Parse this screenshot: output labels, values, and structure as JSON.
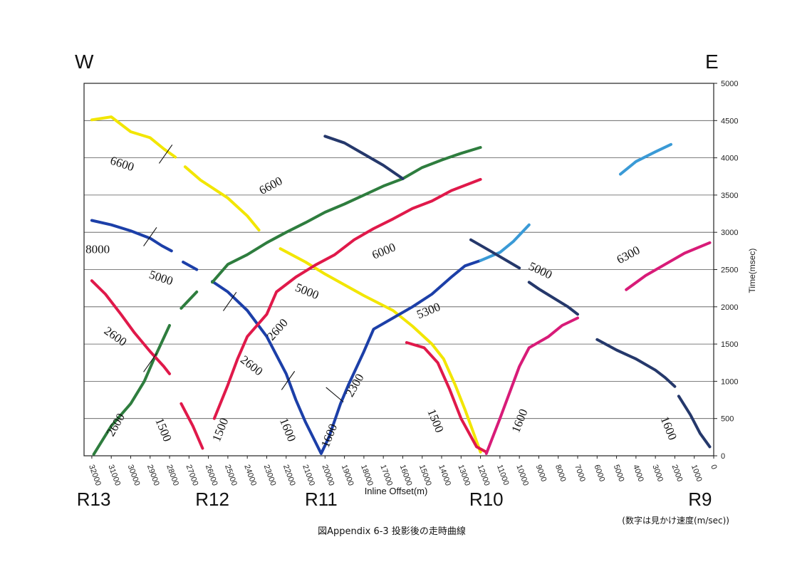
{
  "chart_data": {
    "type": "scatter",
    "title": "図Appendix 6-3  投影後の走時曲線",
    "note": "(数字は見かけ速度(m/sec))",
    "xlabel": "Inline Offset(m)",
    "ylabel": "Time(msec)",
    "xlim": [
      32400,
      0
    ],
    "ylim": [
      0,
      5000
    ],
    "x_ticks": [
      32000,
      31000,
      30000,
      29000,
      28000,
      27000,
      26000,
      25000,
      24000,
      23000,
      22000,
      21000,
      20000,
      19000,
      18000,
      17000,
      16000,
      15000,
      14000,
      13000,
      12000,
      11000,
      10000,
      9000,
      8000,
      7000,
      6000,
      5000,
      4000,
      3000,
      2000,
      1000,
      0
    ],
    "y_ticks": [
      0,
      500,
      1000,
      1500,
      2000,
      2500,
      3000,
      3500,
      4000,
      4500,
      5000
    ],
    "grid": "horizontal",
    "direction_labels": {
      "west": "W",
      "east": "E"
    },
    "stations": [
      {
        "name": "R13",
        "x": 31900
      },
      {
        "name": "R12",
        "x": 25800
      },
      {
        "name": "R11",
        "x": 20200
      },
      {
        "name": "R10",
        "x": 11700
      },
      {
        "name": "R9",
        "x": 700
      }
    ],
    "series": [
      {
        "color": "#f2e600",
        "segments": [
          [
            [
              32000,
              4510
            ],
            [
              31000,
              4550
            ],
            [
              30000,
              4350
            ],
            [
              29000,
              4270
            ],
            [
              28300,
              4120
            ],
            [
              27700,
              4010
            ]
          ],
          [
            [
              27200,
              3880
            ],
            [
              26400,
              3700
            ],
            [
              25000,
              3460
            ],
            [
              24000,
              3220
            ],
            [
              23400,
              3030
            ]
          ],
          [
            [
              22300,
              2780
            ],
            [
              21000,
              2600
            ],
            [
              20000,
              2440
            ],
            [
              18000,
              2150
            ],
            [
              16500,
              1950
            ],
            [
              15500,
              1740
            ],
            [
              14500,
              1500
            ],
            [
              13900,
              1300
            ],
            [
              13300,
              950
            ],
            [
              12800,
              620
            ],
            [
              12000,
              50
            ]
          ]
        ]
      },
      {
        "color": "#1c3fa8",
        "segments": [
          [
            [
              32000,
              3160
            ],
            [
              31000,
              3100
            ],
            [
              30000,
              3020
            ],
            [
              29000,
              2920
            ],
            [
              28400,
              2820
            ],
            [
              27900,
              2750
            ]
          ],
          [
            [
              27300,
              2600
            ],
            [
              26600,
              2500
            ]
          ],
          [
            [
              25800,
              2340
            ],
            [
              25000,
              2200
            ],
            [
              24000,
              1950
            ],
            [
              23000,
              1600
            ],
            [
              22000,
              1100
            ],
            [
              21500,
              750
            ],
            [
              21000,
              450
            ],
            [
              20200,
              30
            ],
            [
              19800,
              250
            ],
            [
              19200,
              700
            ],
            [
              18800,
              950
            ],
            [
              18000,
              1400
            ],
            [
              17500,
              1700
            ],
            [
              16500,
              1850
            ],
            [
              15500,
              2000
            ],
            [
              14500,
              2170
            ],
            [
              13500,
              2400
            ],
            [
              12800,
              2550
            ],
            [
              12000,
              2620
            ]
          ]
        ]
      },
      {
        "color": "#3a9ad6",
        "segments": [
          [
            [
              12000,
              2620
            ],
            [
              11000,
              2730
            ],
            [
              10300,
              2880
            ],
            [
              9500,
              3100
            ]
          ]
        ]
      },
      {
        "color": "#2e7d3e",
        "segments": [
          [
            [
              31900,
              20
            ],
            [
              31000,
              400
            ],
            [
              30000,
              700
            ],
            [
              29300,
              1000
            ],
            [
              28800,
              1300
            ],
            [
              28000,
              1750
            ]
          ],
          [
            [
              27400,
              1980
            ],
            [
              26600,
              2200
            ]
          ],
          [
            [
              25800,
              2330
            ],
            [
              25000,
              2570
            ],
            [
              24000,
              2700
            ],
            [
              23000,
              2860
            ],
            [
              22000,
              3000
            ],
            [
              21000,
              3130
            ],
            [
              20000,
              3270
            ],
            [
              19000,
              3380
            ],
            [
              18000,
              3500
            ],
            [
              17000,
              3620
            ],
            [
              16000,
              3720
            ],
            [
              15000,
              3870
            ],
            [
              14000,
              3970
            ],
            [
              13000,
              4060
            ],
            [
              12000,
              4140
            ]
          ]
        ]
      },
      {
        "color": "#e0194a",
        "segments": [
          [
            [
              32000,
              2350
            ],
            [
              31300,
              2170
            ],
            [
              30500,
              1900
            ],
            [
              29800,
              1650
            ],
            [
              29000,
              1400
            ],
            [
              28300,
              1200
            ],
            [
              28000,
              1100
            ]
          ],
          [
            [
              27400,
              700
            ],
            [
              26800,
              400
            ],
            [
              26300,
              100
            ]
          ],
          [
            [
              25700,
              500
            ],
            [
              25000,
              950
            ],
            [
              24500,
              1300
            ],
            [
              24000,
              1600
            ],
            [
              23000,
              1900
            ],
            [
              22500,
              2200
            ],
            [
              21500,
              2400
            ],
            [
              20500,
              2560
            ],
            [
              19500,
              2700
            ],
            [
              18500,
              2900
            ],
            [
              17500,
              3050
            ],
            [
              16500,
              3180
            ],
            [
              15500,
              3320
            ],
            [
              14500,
              3420
            ],
            [
              13500,
              3560
            ],
            [
              12000,
              3710
            ]
          ],
          [
            [
              15800,
              1520
            ],
            [
              14900,
              1450
            ],
            [
              14200,
              1250
            ],
            [
              13600,
              900
            ],
            [
              13000,
              500
            ],
            [
              12200,
              120
            ],
            [
              11700,
              50
            ]
          ]
        ]
      },
      {
        "color": "#d81b78",
        "segments": [
          [
            [
              11700,
              30
            ],
            [
              11000,
              500
            ],
            [
              10000,
              1200
            ],
            [
              9500,
              1450
            ],
            [
              8500,
              1600
            ],
            [
              7800,
              1750
            ],
            [
              7000,
              1850
            ]
          ],
          [
            [
              4500,
              2230
            ],
            [
              3500,
              2420
            ],
            [
              2500,
              2570
            ],
            [
              1500,
              2720
            ],
            [
              200,
              2860
            ]
          ]
        ]
      },
      {
        "color": "#25386b",
        "segments": [
          [
            [
              20000,
              4290
            ],
            [
              19000,
              4200
            ],
            [
              18000,
              4050
            ],
            [
              17000,
              3900
            ],
            [
              16000,
              3720
            ]
          ],
          [
            [
              12500,
              2900
            ],
            [
              11500,
              2750
            ],
            [
              10000,
              2520
            ]
          ],
          [
            [
              9500,
              2330
            ],
            [
              9000,
              2240
            ],
            [
              8000,
              2080
            ],
            [
              7500,
              2000
            ],
            [
              7000,
              1900
            ]
          ],
          [
            [
              6000,
              1560
            ],
            [
              5000,
              1420
            ],
            [
              4000,
              1300
            ],
            [
              3000,
              1150
            ],
            [
              2500,
              1050
            ],
            [
              2000,
              930
            ]
          ],
          [
            [
              1800,
              800
            ],
            [
              1200,
              550
            ],
            [
              700,
              300
            ],
            [
              200,
              120
            ]
          ]
        ]
      },
      {
        "color": "#3a9ad6",
        "segments": [
          [
            [
              4800,
              3780
            ],
            [
              4000,
              3950
            ],
            [
              3000,
              4080
            ],
            [
              2200,
              4180
            ]
          ]
        ]
      }
    ],
    "velocity_labels": [
      {
        "text": "6600",
        "x": 30500,
        "y": 3870,
        "rotate": 18
      },
      {
        "text": "8000",
        "x": 31700,
        "y": 2720,
        "rotate": 0
      },
      {
        "text": "5000",
        "x": 28500,
        "y": 2340,
        "rotate": 18
      },
      {
        "text": "2600",
        "x": 30900,
        "y": 1560,
        "rotate": 35
      },
      {
        "text": "2600",
        "x": 30600,
        "y": 390,
        "rotate": -60
      },
      {
        "text": "1500",
        "x": 28500,
        "y": 330,
        "rotate": 68
      },
      {
        "text": "6600",
        "x": 22700,
        "y": 3580,
        "rotate": -28
      },
      {
        "text": "1500",
        "x": 25200,
        "y": 330,
        "rotate": -68
      },
      {
        "text": "2600",
        "x": 23900,
        "y": 1170,
        "rotate": 38
      },
      {
        "text": "2600",
        "x": 22300,
        "y": 1660,
        "rotate": -48
      },
      {
        "text": "5000",
        "x": 21000,
        "y": 2160,
        "rotate": 22
      },
      {
        "text": "1600",
        "x": 22100,
        "y": 330,
        "rotate": 68
      },
      {
        "text": "1600",
        "x": 19600,
        "y": 250,
        "rotate": -68
      },
      {
        "text": "2300",
        "x": 18300,
        "y": 920,
        "rotate": -60
      },
      {
        "text": "6000",
        "x": 16900,
        "y": 2700,
        "rotate": -22
      },
      {
        "text": "5300",
        "x": 14600,
        "y": 1900,
        "rotate": -22
      },
      {
        "text": "1500",
        "x": 14500,
        "y": 450,
        "rotate": 68
      },
      {
        "text": "1600",
        "x": 9800,
        "y": 450,
        "rotate": -68
      },
      {
        "text": "5000",
        "x": 9000,
        "y": 2440,
        "rotate": 25
      },
      {
        "text": "6300",
        "x": 4300,
        "y": 2650,
        "rotate": -28
      },
      {
        "text": "1600",
        "x": 2500,
        "y": 350,
        "rotate": 68
      }
    ],
    "break_marks": [
      {
        "x": 28200,
        "y": 4050,
        "rotate": -55
      },
      {
        "x": 29000,
        "y": 2940,
        "rotate": -55
      },
      {
        "x": 24900,
        "y": 2070,
        "rotate": -55
      },
      {
        "x": 29000,
        "y": 1250,
        "rotate": -55
      },
      {
        "x": 21900,
        "y": 1010,
        "rotate": -55
      },
      {
        "x": 19500,
        "y": 820,
        "rotate": 40
      }
    ]
  }
}
